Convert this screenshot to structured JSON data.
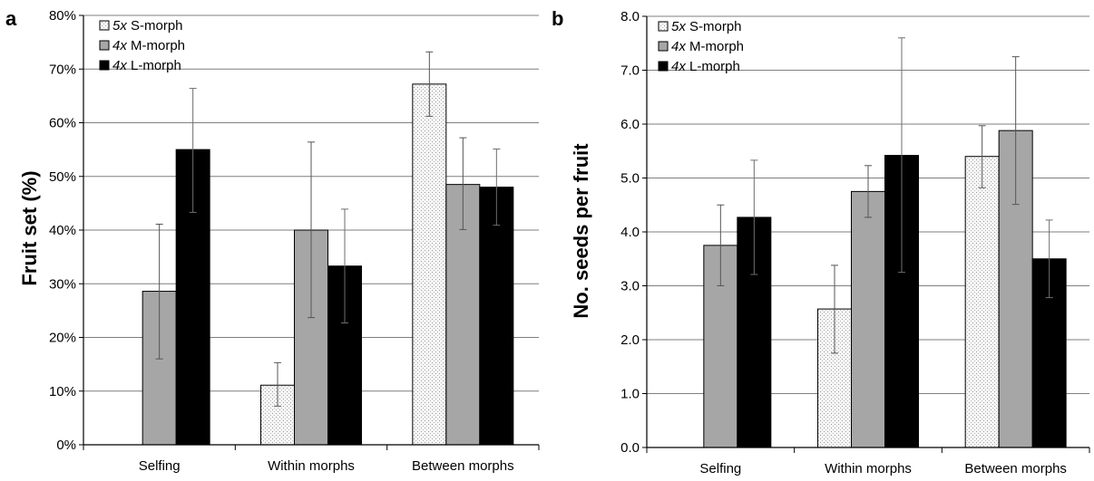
{
  "colors": {
    "s_morph": "#f4f4f4",
    "m_morph": "#a6a6a6",
    "l_morph": "#000000",
    "grid": "#7f7f7f"
  },
  "chart_data": [
    {
      "panel": "a",
      "type": "bar",
      "ylabel": "Fruit set (%)",
      "ylim": [
        0,
        80
      ],
      "yticks": [
        0,
        10,
        20,
        30,
        40,
        50,
        60,
        70,
        80
      ],
      "ytick_labels": [
        "0%",
        "10%",
        "20%",
        "30%",
        "40%",
        "50%",
        "60%",
        "70%",
        "80%"
      ],
      "grid": true,
      "legend": "top-left",
      "categories": [
        "Selfing",
        "Within morphs",
        "Between morphs"
      ],
      "series": [
        {
          "name": "5x S-morph",
          "name_prefix": "5x",
          "name_suffix": " S-morph",
          "key": "s_morph",
          "values": [
            null,
            11.1,
            67.2
          ],
          "err_low": [
            null,
            7.2,
            61.2
          ],
          "err_high": [
            null,
            15.3,
            73.2
          ]
        },
        {
          "name": "4x M-morph",
          "name_prefix": "4x",
          "name_suffix": " M-morph",
          "key": "m_morph",
          "values": [
            28.6,
            40.0,
            48.5
          ],
          "err_low": [
            16.0,
            23.7,
            40.1
          ],
          "err_high": [
            41.1,
            56.4,
            57.2
          ]
        },
        {
          "name": "4x L-morph",
          "name_prefix": "4x",
          "name_suffix": " L-morph",
          "key": "l_morph",
          "values": [
            55.0,
            33.3,
            48.0
          ],
          "err_low": [
            43.3,
            22.7,
            40.9
          ],
          "err_high": [
            66.4,
            43.9,
            55.1
          ]
        }
      ]
    },
    {
      "panel": "b",
      "type": "bar",
      "ylabel": "No. seeds per fruit",
      "ylim": [
        0,
        8
      ],
      "yticks": [
        0,
        1,
        2,
        3,
        4,
        5,
        6,
        7,
        8
      ],
      "ytick_labels": [
        "0.0",
        "1.0",
        "2.0",
        "3.0",
        "4.0",
        "5.0",
        "6.0",
        "7.0",
        "8.0"
      ],
      "grid": true,
      "legend": "top-left",
      "categories": [
        "Selfing",
        "Within morphs",
        "Between morphs"
      ],
      "series": [
        {
          "name": "5x S-morph",
          "name_prefix": "5x",
          "name_suffix": " S-morph",
          "key": "s_morph",
          "values": [
            null,
            2.57,
            5.4
          ],
          "err_low": [
            null,
            1.75,
            4.82
          ],
          "err_high": [
            null,
            3.38,
            5.97
          ]
        },
        {
          "name": "4x M-morph",
          "name_prefix": "4x",
          "name_suffix": " M-morph",
          "key": "m_morph",
          "values": [
            3.75,
            4.75,
            5.88
          ],
          "err_low": [
            3.0,
            4.27,
            4.51
          ],
          "err_high": [
            4.5,
            5.23,
            7.25
          ]
        },
        {
          "name": "4x L-morph",
          "name_prefix": "4x",
          "name_suffix": " L-morph",
          "key": "l_morph",
          "values": [
            4.27,
            5.42,
            3.5
          ],
          "err_low": [
            3.21,
            3.25,
            2.78
          ],
          "err_high": [
            5.33,
            7.6,
            4.22
          ]
        }
      ]
    }
  ]
}
